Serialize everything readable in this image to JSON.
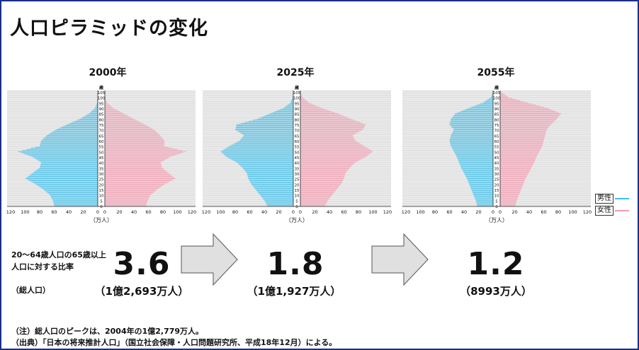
{
  "title": "人口ピラミッドの変化",
  "colors": {
    "male": "#3dc0ec",
    "female": "#f49bb1",
    "gridline": "#d8d8d8",
    "arrow_fill": "#e0e0e0",
    "frame": "#1a2f8a"
  },
  "legend": {
    "male": "男性",
    "female": "女性"
  },
  "unit_label": "（万人）",
  "age_unit": "歳",
  "ratio_label_line1": "20～64歳人口の65歳以上",
  "ratio_label_line2": "人口に対する比率",
  "total_label": "（総人口）",
  "panels": [
    {
      "year": "2000年",
      "ratio": "3.6",
      "total": "（1億2,693万人）"
    },
    {
      "year": "2025年",
      "ratio": "1.8",
      "total": "（1億1,927万人）"
    },
    {
      "year": "2055年",
      "ratio": "1.2",
      "total": "（8993万人）"
    }
  ],
  "notes": {
    "note": "（注）総人口のピークは、2004年の1億2,779万人。",
    "source": "（出典）「日本の将来推計人口」（国立社会保障・人口問題研究所、平成18年12月）による。"
  },
  "chart_data": [
    {
      "type": "bar",
      "title": "2000年",
      "xlabel": "（万人）",
      "ylabel": "歳",
      "x_ticks": [
        120,
        100,
        80,
        60,
        40,
        20,
        0
      ],
      "xlim": [
        0,
        120
      ],
      "age_ticks": [
        0,
        5,
        10,
        15,
        20,
        25,
        30,
        35,
        40,
        45,
        50,
        55,
        60,
        65,
        70,
        75,
        80,
        85,
        90,
        95,
        100,
        105
      ],
      "ages": [
        0,
        5,
        10,
        15,
        20,
        25,
        30,
        35,
        40,
        45,
        50,
        55,
        60,
        65,
        70,
        75,
        80,
        85,
        90,
        95,
        100,
        105
      ],
      "series": [
        {
          "name": "男性",
          "values": [
            60,
            62,
            66,
            75,
            86,
            100,
            90,
            80,
            78,
            90,
            110,
            80,
            78,
            70,
            58,
            42,
            25,
            12,
            4,
            1,
            0.2,
            0
          ]
        },
        {
          "name": "女性",
          "values": [
            57,
            59,
            63,
            72,
            83,
            97,
            88,
            79,
            77,
            90,
            112,
            82,
            82,
            76,
            68,
            55,
            40,
            26,
            12,
            3,
            0.5,
            0
          ]
        }
      ]
    },
    {
      "type": "bar",
      "title": "2025年",
      "xlabel": "（万人）",
      "ylabel": "歳",
      "x_ticks": [
        120,
        100,
        80,
        60,
        40,
        20,
        0
      ],
      "xlim": [
        0,
        120
      ],
      "age_ticks": [
        0,
        5,
        10,
        15,
        20,
        25,
        30,
        35,
        40,
        45,
        50,
        55,
        60,
        65,
        70,
        75,
        80,
        85,
        90,
        95,
        100,
        105
      ],
      "ages": [
        0,
        5,
        10,
        15,
        20,
        25,
        30,
        35,
        40,
        45,
        50,
        55,
        60,
        65,
        70,
        75,
        80,
        85,
        90,
        95,
        100,
        105
      ],
      "series": [
        {
          "name": "男性",
          "values": [
            36,
            40,
            46,
            52,
            58,
            62,
            64,
            70,
            78,
            92,
            100,
            88,
            74,
            68,
            80,
            78,
            50,
            32,
            14,
            4,
            1,
            0
          ]
        },
        {
          "name": "女性",
          "values": [
            34,
            38,
            44,
            50,
            56,
            60,
            62,
            68,
            76,
            90,
            100,
            88,
            76,
            72,
            86,
            90,
            70,
            52,
            30,
            12,
            3,
            0
          ]
        }
      ]
    },
    {
      "type": "bar",
      "title": "2055年",
      "xlabel": "（万人）",
      "ylabel": "歳",
      "x_ticks": [
        120,
        100,
        80,
        60,
        40,
        20,
        0
      ],
      "xlim": [
        0,
        120
      ],
      "age_ticks": [
        0,
        5,
        10,
        15,
        20,
        25,
        30,
        35,
        40,
        45,
        50,
        55,
        60,
        65,
        70,
        75,
        80,
        85,
        90,
        95,
        100,
        105
      ],
      "ages": [
        0,
        5,
        10,
        15,
        20,
        25,
        30,
        35,
        40,
        45,
        50,
        55,
        60,
        65,
        70,
        75,
        80,
        85,
        90,
        95,
        100,
        105
      ],
      "series": [
        {
          "name": "男性",
          "values": [
            22,
            24,
            27,
            30,
            33,
            36,
            40,
            44,
            47,
            50,
            54,
            58,
            60,
            58,
            54,
            60,
            58,
            52,
            34,
            14,
            3,
            0
          ]
        },
        {
          "name": "女性",
          "values": [
            21,
            23,
            26,
            29,
            32,
            35,
            39,
            43,
            47,
            50,
            54,
            58,
            60,
            62,
            64,
            70,
            78,
            84,
            66,
            38,
            12,
            1
          ]
        }
      ]
    }
  ]
}
